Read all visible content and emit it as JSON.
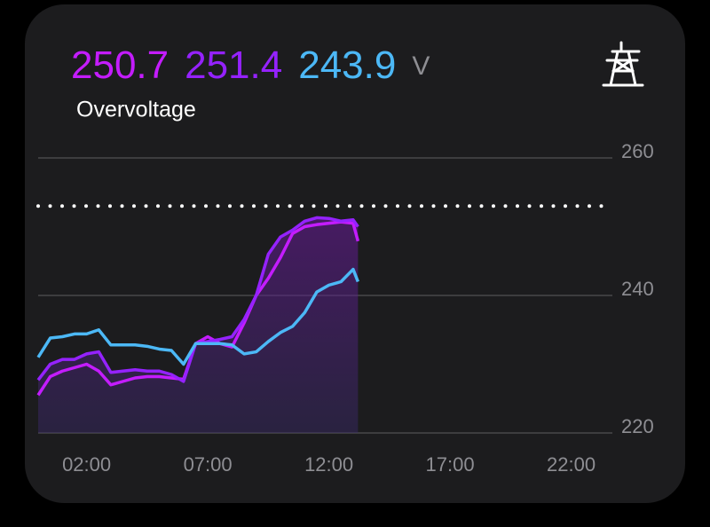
{
  "header": {
    "readings": [
      250.7,
      251.4,
      243.9
    ],
    "unit": "V",
    "title": "Overvoltage"
  },
  "chart_data": {
    "type": "line",
    "x": [
      0,
      0.5,
      1,
      1.5,
      2,
      2.5,
      3,
      3.5,
      4,
      4.5,
      5,
      5.5,
      6,
      6.5,
      7,
      7.5,
      8,
      8.5,
      9,
      9.5,
      10,
      10.5,
      11,
      11.5,
      12,
      12.5,
      13,
      13.2
    ],
    "series": [
      {
        "color": "#c41cff",
        "values": [
          225.5,
          228.2,
          229,
          229.5,
          230,
          229,
          227,
          227.5,
          228,
          228.2,
          228.2,
          228,
          227.8,
          233,
          234,
          233,
          232.5,
          236,
          240,
          242.5,
          245.5,
          249,
          250,
          250.3,
          250.5,
          250.7,
          250.5,
          247.9
        ]
      },
      {
        "color": "#9522ff",
        "values": [
          227.7,
          230,
          230.7,
          230.7,
          231.5,
          231.8,
          228.8,
          229,
          229.2,
          229,
          229,
          228.5,
          227.5,
          233,
          233.3,
          233.6,
          234,
          236.5,
          240,
          246,
          248.5,
          249.5,
          250.8,
          251.3,
          251.2,
          250.8,
          251,
          250
        ]
      },
      {
        "color": "#4cb8f6",
        "values": [
          231,
          233.8,
          234,
          234.4,
          234.4,
          235,
          232.8,
          232.8,
          232.8,
          232.6,
          232.2,
          232,
          230,
          233,
          233,
          233,
          232.8,
          231.5,
          231.8,
          233.3,
          234.6,
          235.5,
          237.5,
          240.5,
          241.5,
          242,
          243.8,
          242
        ]
      }
    ],
    "threshold": 253,
    "xlim": [
      0,
      23.7
    ],
    "xticks": [
      {
        "value": 2,
        "label": "02:00"
      },
      {
        "value": 7,
        "label": "07:00"
      },
      {
        "value": 12,
        "label": "12:00"
      },
      {
        "value": 17,
        "label": "17:00"
      },
      {
        "value": 22,
        "label": "22:00"
      }
    ],
    "ylim": [
      220,
      260
    ],
    "yticks": [
      220,
      240,
      260
    ],
    "grid": true
  }
}
